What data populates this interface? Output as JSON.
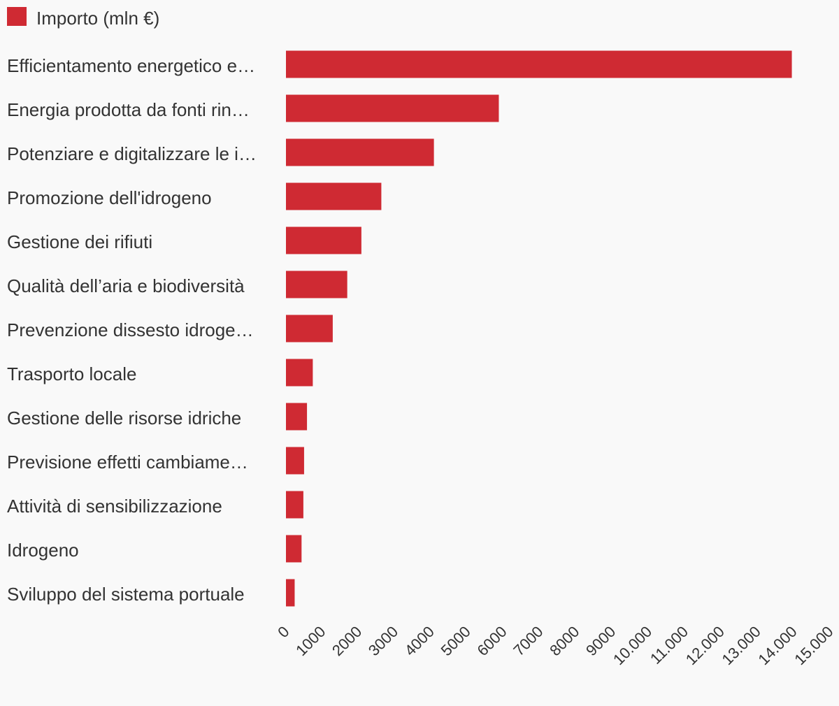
{
  "chart_data": {
    "type": "bar",
    "orientation": "horizontal",
    "legend_position": "top-left",
    "grid": false,
    "title": "",
    "xlabel": "",
    "ylabel": "",
    "series": [
      {
        "name": "Importo (mln €)",
        "color": "#cf2a33",
        "values": [
          13950,
          5870,
          4080,
          2630,
          2080,
          1690,
          1290,
          740,
          580,
          500,
          480,
          430,
          240
        ]
      }
    ],
    "categories": [
      "Efficientamento energetico e…",
      "Energia prodotta da fonti rin…",
      "Potenziare e digitalizzare le i…",
      "Promozione dell'idrogeno",
      "Gestione dei rifiuti",
      "Qualità dell’aria e biodiversità",
      "Prevenzione dissesto idroge…",
      "Trasporto locale",
      "Gestione delle risorse idriche",
      "Previsione effetti cambiame…",
      "Attività di sensibilizzazione",
      "Idrogeno",
      "Sviluppo del sistema portuale"
    ],
    "xlim": [
      0,
      15000
    ],
    "ticks": [
      0,
      1000,
      2000,
      3000,
      4000,
      5000,
      6000,
      7000,
      8000,
      9000,
      10000,
      11000,
      12000,
      13000,
      14000,
      15000
    ],
    "tick_labels": [
      "0",
      "1000",
      "2000",
      "3000",
      "4000",
      "5000",
      "6000",
      "7000",
      "8000",
      "9000",
      "10.000",
      "11.000",
      "12.000",
      "13.000",
      "14.000",
      "15.000"
    ]
  }
}
